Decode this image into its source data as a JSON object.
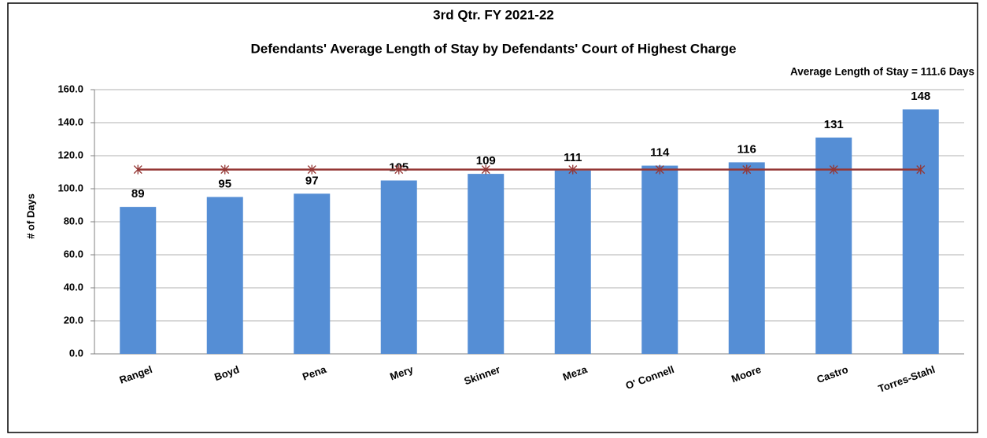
{
  "chart_data": {
    "type": "bar",
    "title": "3rd Qtr. FY 2021-22",
    "subtitle": "Defendants' Average Length of Stay by Defendants' Court of Highest Charge",
    "annotation": "Average Length of Stay = 111.6 Days",
    "y_label": "# of Days",
    "categories": [
      "Rangel",
      "Boyd",
      "Pena",
      "Mery",
      "Skinner",
      "Meza",
      "O' Connell",
      "Moore",
      "Castro",
      "Torres-Stahl"
    ],
    "series": [
      {
        "type": "bar",
        "color": "#558ed5",
        "values": [
          89,
          95,
          97,
          105,
          109,
          111,
          114,
          116,
          131,
          148
        ]
      },
      {
        "type": "line",
        "color": "#943634",
        "values": [
          111.6,
          111.6,
          111.6,
          111.6,
          111.6,
          111.6,
          111.6,
          111.6,
          111.6,
          111.6
        ]
      }
    ],
    "ylim": [
      0,
      160
    ],
    "yticks": [
      {
        "value": 0,
        "label": "0.0"
      },
      {
        "value": 20,
        "label": "20.0"
      },
      {
        "value": 40,
        "label": "40.0"
      },
      {
        "value": 60,
        "label": "60.0"
      },
      {
        "value": 80,
        "label": "80.0"
      },
      {
        "value": 100,
        "label": "100.0"
      },
      {
        "value": 120,
        "label": "120.0"
      },
      {
        "value": 140,
        "label": "140.0"
      },
      {
        "value": 160,
        "label": "160.0"
      }
    ],
    "grid": true
  }
}
